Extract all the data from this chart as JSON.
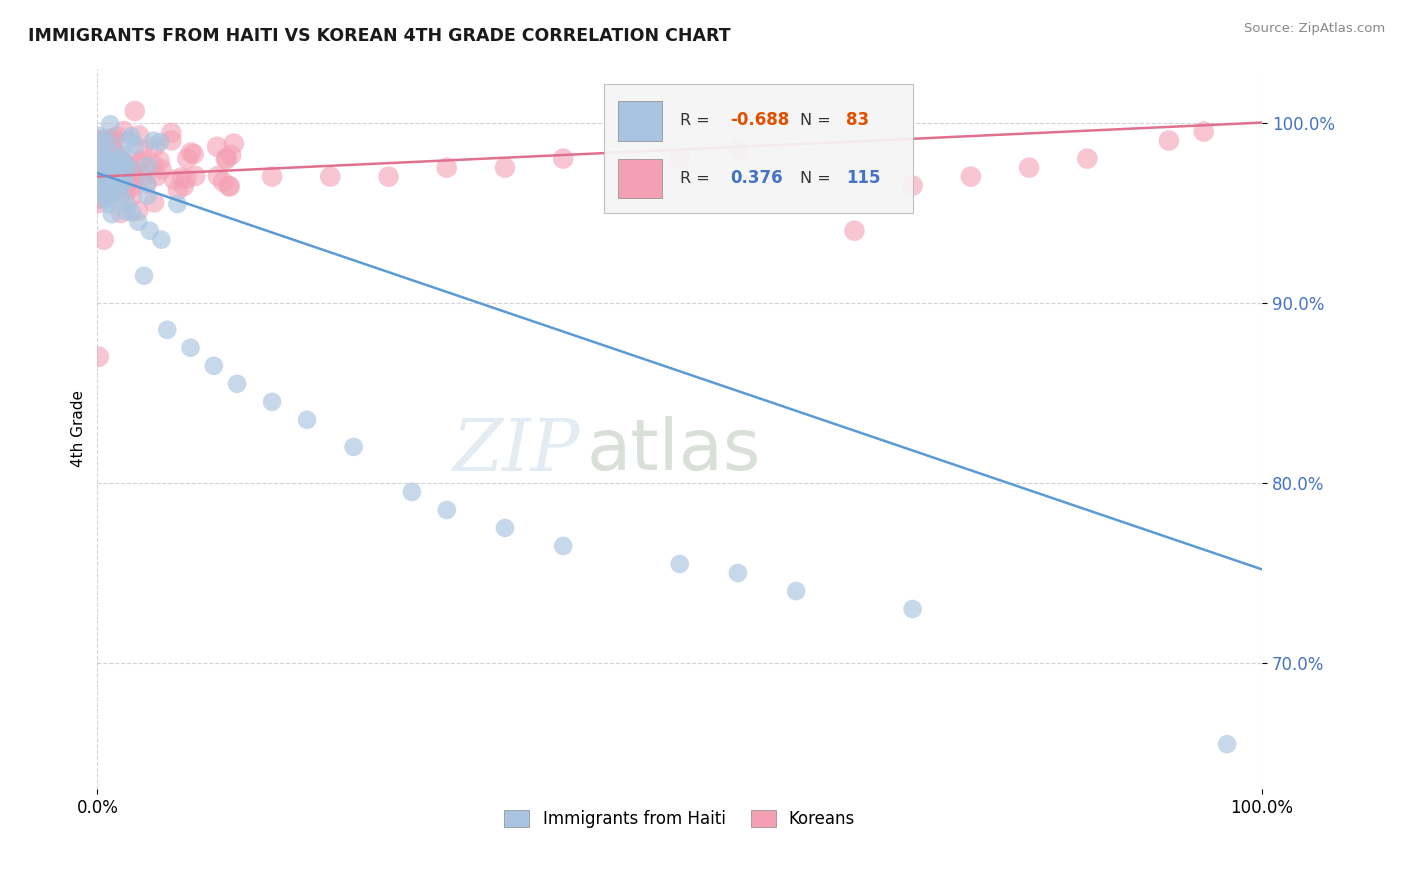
{
  "title": "IMMIGRANTS FROM HAITI VS KOREAN 4TH GRADE CORRELATION CHART",
  "source_text": "Source: ZipAtlas.com",
  "ylabel": "4th Grade",
  "xlim": [
    0.0,
    1.0
  ],
  "ylim": [
    0.63,
    1.03
  ],
  "x_tick_labels": [
    "0.0%",
    "100.0%"
  ],
  "y_tick_labels": [
    "70.0%",
    "80.0%",
    "90.0%",
    "100.0%"
  ],
  "y_tick_values": [
    0.7,
    0.8,
    0.9,
    1.0
  ],
  "legend_labels": [
    "Immigrants from Haiti",
    "Koreans"
  ],
  "haiti_R": "-0.688",
  "haiti_N": "83",
  "korean_R": "0.376",
  "korean_N": "115",
  "haiti_color": "#a8c4e0",
  "korean_color": "#f4a0b4",
  "haiti_line_color": "#5b9bd5",
  "korean_line_color": "#e07090",
  "watermark_zip": "ZIP",
  "watermark_atlas": "atlas",
  "background_color": "#ffffff",
  "haiti_line_x0": 0.0,
  "haiti_line_y0": 0.972,
  "haiti_line_x1": 1.0,
  "haiti_line_y1": 0.752,
  "korean_line_x0": 0.0,
  "korean_line_y0": 0.97,
  "korean_line_x1": 1.0,
  "korean_line_y1": 1.0
}
